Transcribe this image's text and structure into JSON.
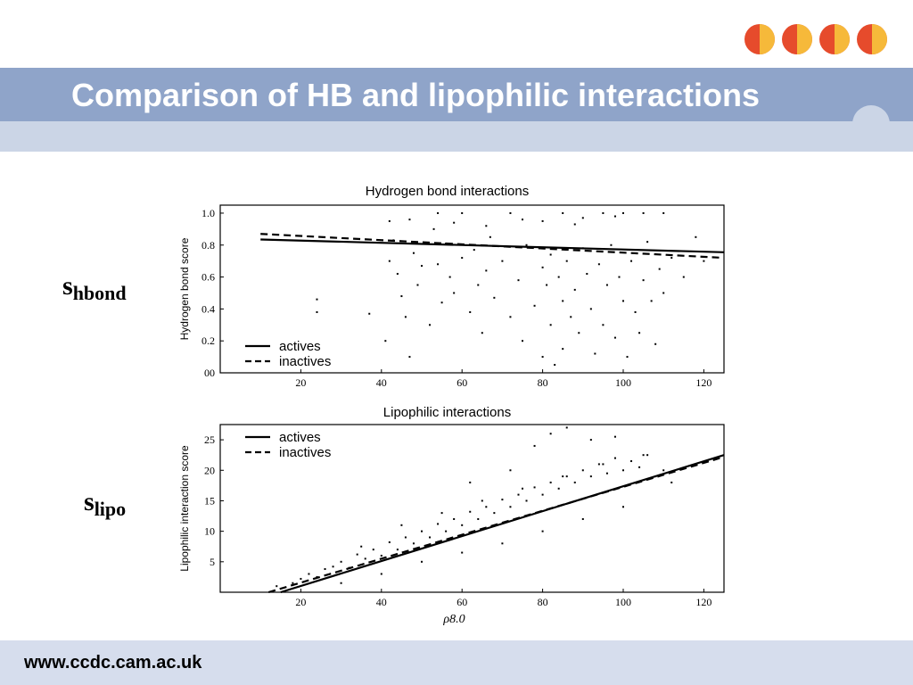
{
  "slide": {
    "title": "Comparison of HB and lipophilic interactions",
    "footer_url": "www.ccdc.cam.ac.uk",
    "label_hbond_main": "s",
    "label_hbond_sub": "hbond",
    "label_lipo_main": "s",
    "label_lipo_sub": "lipo"
  },
  "logo": {
    "icon": "ccdc-logo-circles",
    "colors": [
      "#e64b2c",
      "#f6b93a"
    ]
  },
  "colors": {
    "title_band": "#8fa4c9",
    "sub_band": "#cbd5e6",
    "footer_band": "#d6dded",
    "title_text": "#ffffff"
  },
  "chart_data": [
    {
      "type": "scatter",
      "title": "Hydrogen bond interactions",
      "xlabel": "",
      "ylabel": "Hydrogen bond score",
      "xlim": [
        0,
        125
      ],
      "ylim": [
        0,
        1.05
      ],
      "xticks": [
        20,
        40,
        60,
        80,
        100,
        120
      ],
      "yticks": [
        0,
        0.2,
        0.4,
        0.6,
        0.8,
        1.0
      ],
      "ytick_labels": [
        "00",
        "0.2",
        "0.4",
        "0.6",
        "0.8",
        "1.0"
      ],
      "grid": false,
      "legend": "bottom-left",
      "series": [
        {
          "name": "actives",
          "style": "solid",
          "x": [
            10,
            125
          ],
          "y": [
            0.835,
            0.755
          ]
        },
        {
          "name": "inactives",
          "style": "dashed",
          "x": [
            10,
            125
          ],
          "y": [
            0.87,
            0.72
          ]
        }
      ],
      "points": {
        "x": [
          24,
          24,
          37,
          41,
          42,
          43,
          44,
          45,
          46,
          47,
          48,
          49,
          50,
          52,
          53,
          54,
          55,
          56,
          57,
          58,
          60,
          62,
          63,
          64,
          65,
          66,
          67,
          68,
          70,
          72,
          74,
          75,
          76,
          78,
          80,
          80,
          81,
          82,
          82,
          83,
          84,
          85,
          85,
          86,
          87,
          88,
          89,
          90,
          91,
          92,
          93,
          94,
          95,
          96,
          97,
          98,
          99,
          100,
          101,
          102,
          103,
          104,
          105,
          106,
          107,
          108,
          109,
          110,
          112,
          115,
          118,
          120,
          54,
          60,
          72,
          85,
          95,
          100,
          105,
          110,
          80,
          90,
          75,
          88,
          98,
          66,
          58,
          47,
          42
        ],
        "y": [
          0.46,
          0.38,
          0.37,
          0.2,
          0.7,
          0.83,
          0.62,
          0.48,
          0.35,
          0.1,
          0.75,
          0.55,
          0.67,
          0.3,
          0.9,
          0.68,
          0.44,
          0.81,
          0.6,
          0.5,
          0.72,
          0.38,
          0.77,
          0.55,
          0.25,
          0.64,
          0.85,
          0.47,
          0.7,
          0.35,
          0.58,
          0.2,
          0.8,
          0.42,
          0.66,
          0.1,
          0.55,
          0.3,
          0.74,
          0.05,
          0.6,
          0.45,
          0.15,
          0.7,
          0.35,
          0.52,
          0.25,
          0.78,
          0.62,
          0.4,
          0.12,
          0.68,
          0.3,
          0.55,
          0.8,
          0.22,
          0.6,
          0.45,
          0.1,
          0.7,
          0.38,
          0.25,
          0.58,
          0.82,
          0.45,
          0.18,
          0.65,
          0.5,
          0.72,
          0.6,
          0.85,
          0.7,
          1.0,
          1.0,
          1.0,
          1.0,
          1.0,
          1.0,
          1.0,
          1.0,
          0.95,
          0.97,
          0.96,
          0.93,
          0.98,
          0.92,
          0.94,
          0.96,
          0.95
        ]
      }
    },
    {
      "type": "scatter",
      "title": "Lipophilic interactions",
      "xlabel": "ρ8.0",
      "ylabel": "Lipophilic interaction score",
      "xlim": [
        0,
        125
      ],
      "ylim": [
        0,
        27.5
      ],
      "xticks": [
        20,
        40,
        60,
        80,
        100,
        120
      ],
      "yticks": [
        5,
        10,
        15,
        20,
        25
      ],
      "grid": false,
      "legend": "top-left",
      "series": [
        {
          "name": "actives",
          "style": "solid",
          "x": [
            15,
            125
          ],
          "y": [
            0,
            22.5
          ]
        },
        {
          "name": "inactives",
          "style": "dashed",
          "x": [
            12,
            125
          ],
          "y": [
            0,
            22.2
          ]
        }
      ],
      "points": {
        "x": [
          14,
          18,
          20,
          22,
          24,
          26,
          28,
          30,
          32,
          34,
          36,
          38,
          40,
          42,
          44,
          46,
          48,
          50,
          52,
          54,
          56,
          58,
          60,
          62,
          64,
          66,
          68,
          70,
          72,
          74,
          76,
          78,
          80,
          82,
          84,
          86,
          88,
          90,
          92,
          94,
          96,
          98,
          100,
          102,
          104,
          106,
          108,
          110,
          112,
          30,
          40,
          50,
          60,
          70,
          80,
          90,
          100,
          45,
          55,
          65,
          75,
          85,
          95,
          105,
          35,
          62,
          78,
          92,
          82,
          86,
          98,
          72
        ],
        "y": [
          1.0,
          1.5,
          2.2,
          3.0,
          2.5,
          3.8,
          4.2,
          5.0,
          4.0,
          6.2,
          5.5,
          7.0,
          6.0,
          8.2,
          7.0,
          9.0,
          8.0,
          10.0,
          9.0,
          11.2,
          10.0,
          12.0,
          11.0,
          13.2,
          12.0,
          14.0,
          13.0,
          15.2,
          14.0,
          16.0,
          15.0,
          17.2,
          16.0,
          18.0,
          17.0,
          19.0,
          18.0,
          20.0,
          19.0,
          21.0,
          19.5,
          22.0,
          20.0,
          21.5,
          20.5,
          22.5,
          19.0,
          20.0,
          18.0,
          1.5,
          3.0,
          5.0,
          6.5,
          8.0,
          10.0,
          12.0,
          14.0,
          11.0,
          13.0,
          15.0,
          17.0,
          19.0,
          21.0,
          22.5,
          7.5,
          18.0,
          24.0,
          25.0,
          26.0,
          27.0,
          25.5,
          20.0
        ]
      }
    }
  ]
}
